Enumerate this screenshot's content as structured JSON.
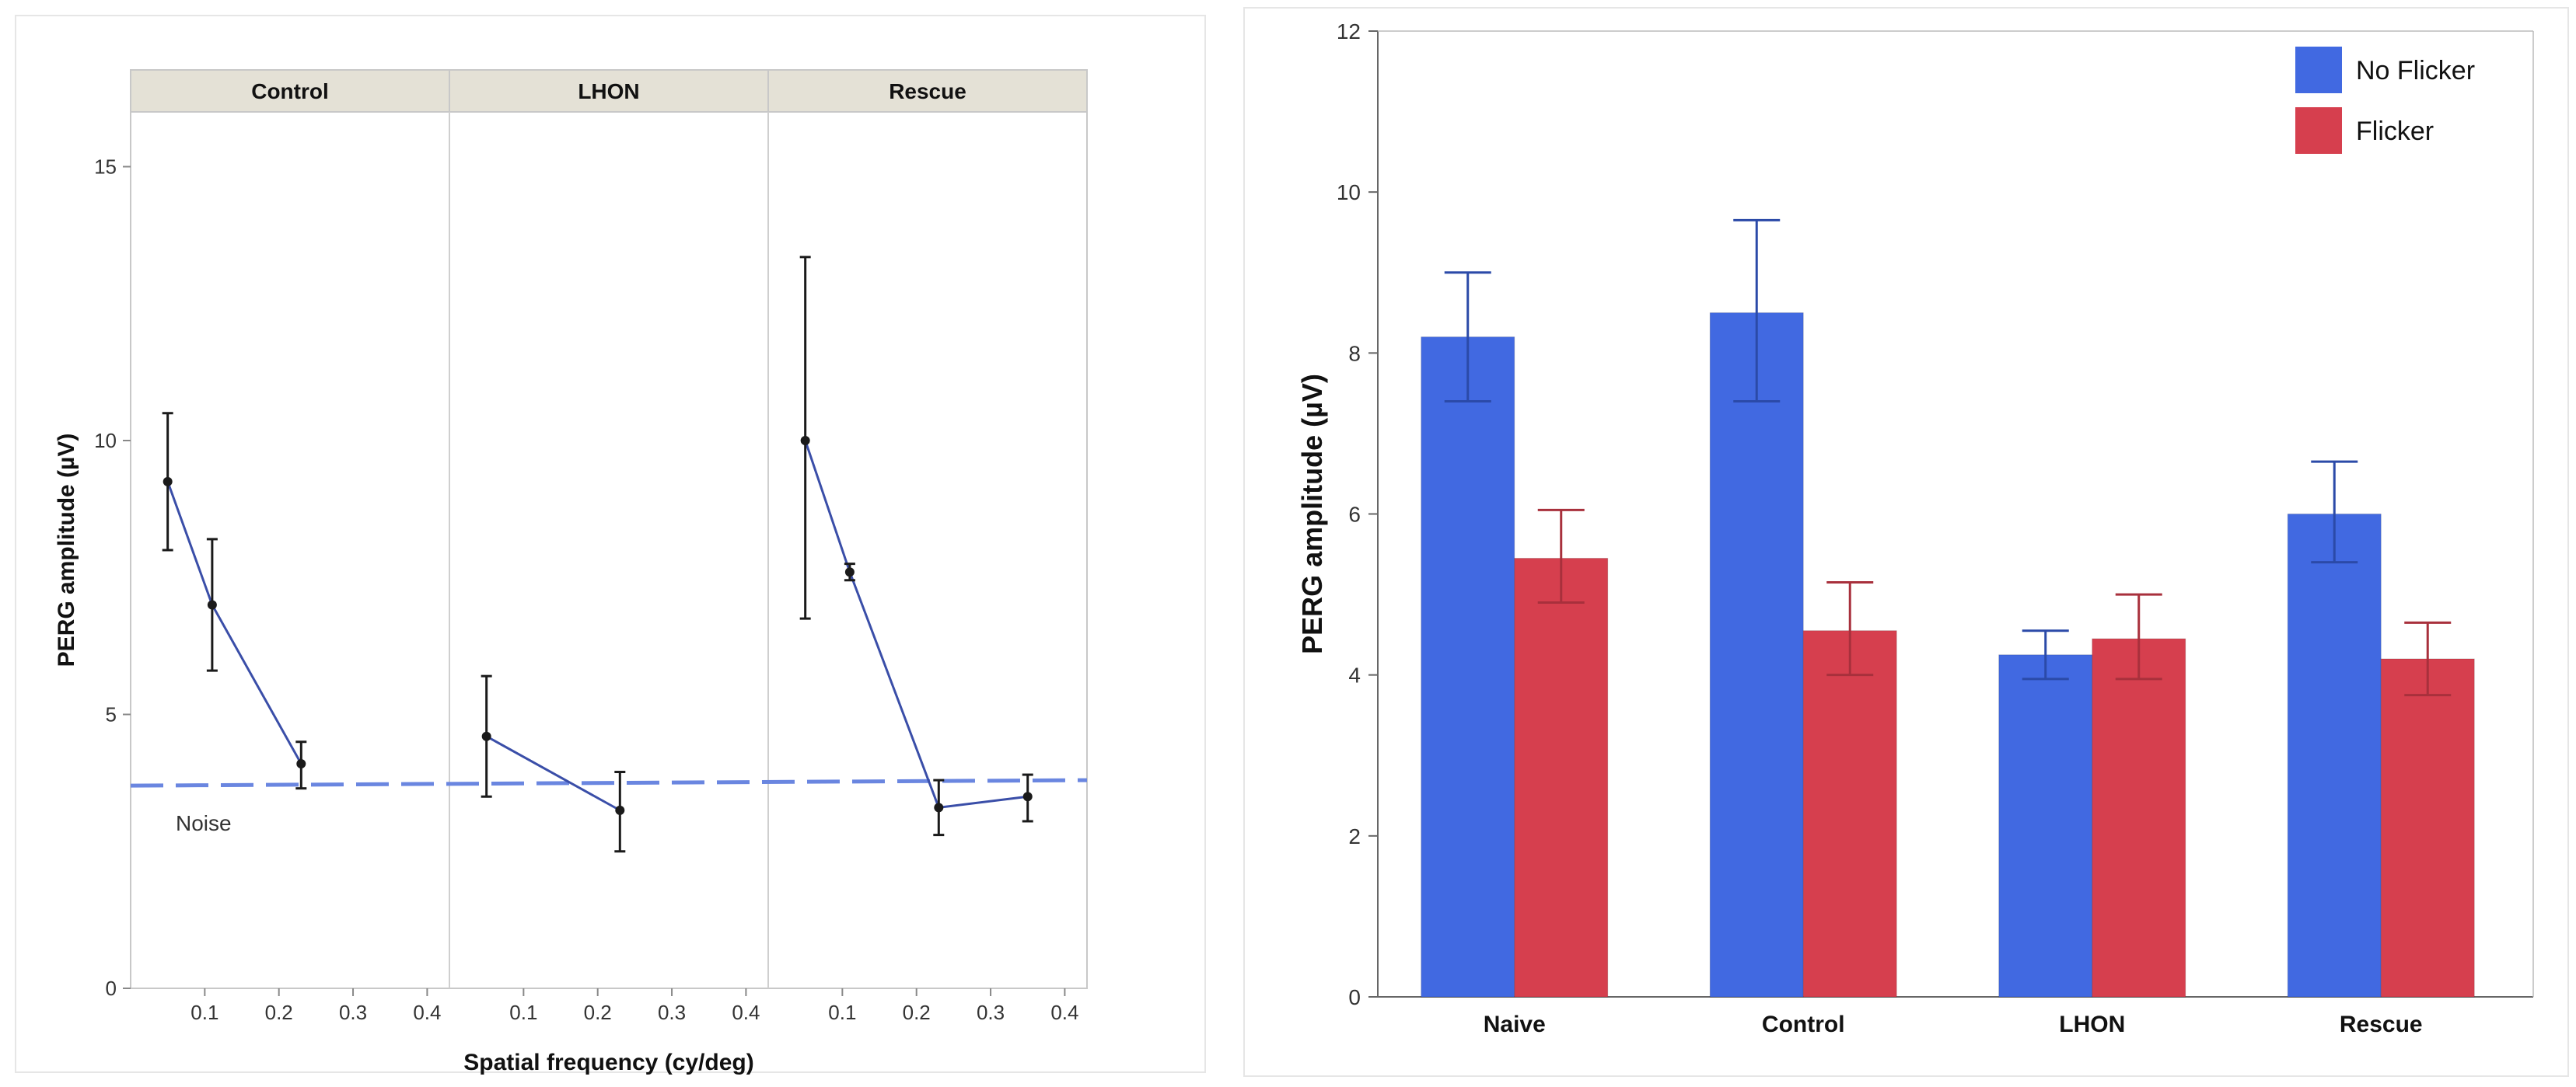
{
  "chart_data": [
    {
      "type": "line",
      "facets": [
        "Control",
        "LHON",
        "Rescue"
      ],
      "xlabel": "Spatial frequency (cy/deg)",
      "ylabel": "PERG amplitude (µV)",
      "xticks": [
        "0.1",
        "0.2",
        "0.3",
        "0.4"
      ],
      "xtick_values": [
        0.1,
        0.2,
        0.3,
        0.4
      ],
      "xlim": [
        0,
        0.43
      ],
      "yticks": [
        "0",
        "5",
        "10",
        "15"
      ],
      "ytick_values": [
        0,
        5,
        10,
        15
      ],
      "ylim": [
        0,
        16
      ],
      "grid": false,
      "noise": {
        "label": "Noise",
        "value": 3.7,
        "value_end": 3.8
      },
      "colors": {
        "line": "#3a4ea8",
        "point": "#1a1a1a",
        "noise": "#6a86e0",
        "facet_header": "#e4e1d6"
      },
      "series": [
        {
          "facet": "Control",
          "x": [
            0.05,
            0.11,
            0.23
          ],
          "y": [
            9.25,
            7.0,
            4.1
          ],
          "err_low": [
            8.0,
            5.8,
            3.65
          ],
          "err_high": [
            10.5,
            8.2,
            4.5
          ]
        },
        {
          "facet": "LHON",
          "x": [
            0.05,
            0.23
          ],
          "y": [
            4.6,
            3.25
          ],
          "err_low": [
            3.5,
            2.5
          ],
          "err_high": [
            5.7,
            3.95
          ]
        },
        {
          "facet": "Rescue",
          "x": [
            0.05,
            0.11,
            0.23,
            0.35
          ],
          "y": [
            10.0,
            7.6,
            3.3,
            3.5
          ],
          "err_low": [
            6.75,
            7.45,
            2.8,
            3.05
          ],
          "err_high": [
            13.35,
            7.75,
            3.8,
            3.9
          ]
        }
      ]
    },
    {
      "type": "bar",
      "categories": [
        "Naive",
        "Control",
        "LHON",
        "Rescue"
      ],
      "ylabel": "PERG amplitude (µV)",
      "xlabel": "",
      "yticks": [
        "0",
        "2",
        "4",
        "6",
        "8",
        "10",
        "12"
      ],
      "ytick_values": [
        0,
        2,
        4,
        6,
        8,
        10,
        12
      ],
      "ylim": [
        0,
        12
      ],
      "grid": false,
      "legend_position": "top-right",
      "series": [
        {
          "name": "No Flicker",
          "color": "#4169e1",
          "values": [
            8.2,
            8.5,
            4.25,
            6.0
          ],
          "err_low": [
            7.4,
            7.4,
            3.95,
            5.4
          ],
          "err_high": [
            9.0,
            9.65,
            4.55,
            6.65
          ]
        },
        {
          "name": "Flicker",
          "color": "#d63f4e",
          "values": [
            5.45,
            4.55,
            4.45,
            4.2
          ],
          "err_low": [
            4.9,
            4.0,
            3.95,
            3.75
          ],
          "err_high": [
            6.05,
            5.15,
            5.0,
            4.65
          ]
        }
      ]
    }
  ]
}
